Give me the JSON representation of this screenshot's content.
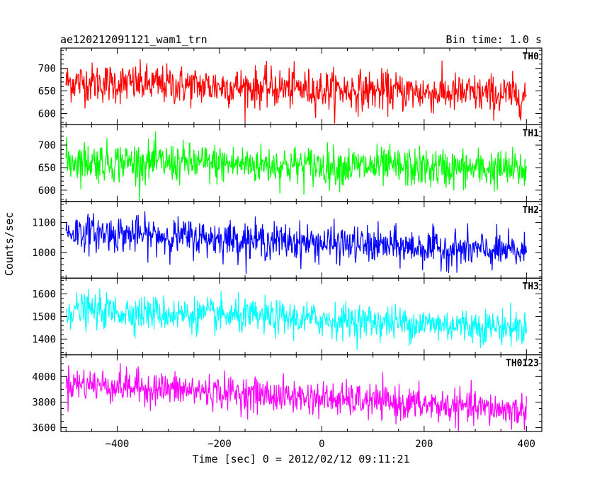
{
  "chart_data": {
    "type": "line",
    "title_left": "ae120212091121_wam1_trn",
    "title_right": "Bin time: 1.0 s",
    "xlabel": "Time [sec] 0 = 2012/02/12 09:11:21",
    "ylabel": "Counts/sec",
    "xlim": [
      -510,
      430
    ],
    "x_range": [
      -500,
      400
    ],
    "x_ticks": [
      -400,
      -200,
      0,
      200,
      400
    ],
    "x_tick_labels": [
      "−400",
      "−200",
      "0",
      "200",
      "400"
    ],
    "panels": [
      {
        "name": "TH0",
        "color": "#ff0000",
        "ylim": [
          575,
          745
        ],
        "y_ticks": [
          600,
          650,
          700
        ],
        "trend_start": 670,
        "trend_end": 640,
        "noise": 40
      },
      {
        "name": "TH1",
        "color": "#00ff00",
        "ylim": [
          575,
          745
        ],
        "y_ticks": [
          600,
          650,
          700
        ],
        "trend_start": 665,
        "trend_end": 645,
        "noise": 40
      },
      {
        "name": "TH2",
        "color": "#0000ff",
        "ylim": [
          915,
          1170
        ],
        "y_ticks": [
          1000,
          1100
        ],
        "trend_start": 1070,
        "trend_end": 1000,
        "noise": 55
      },
      {
        "name": "TH3",
        "color": "#00ffff",
        "ylim": [
          1330,
          1670
        ],
        "y_ticks": [
          1400,
          1500,
          1600
        ],
        "trend_start": 1530,
        "trend_end": 1450,
        "noise": 70
      },
      {
        "name": "TH0123",
        "color": "#ff00ff",
        "ylim": [
          3570,
          4170
        ],
        "y_ticks": [
          3600,
          3800,
          4000
        ],
        "trend_start": 3950,
        "trend_end": 3730,
        "noise": 120
      }
    ]
  }
}
